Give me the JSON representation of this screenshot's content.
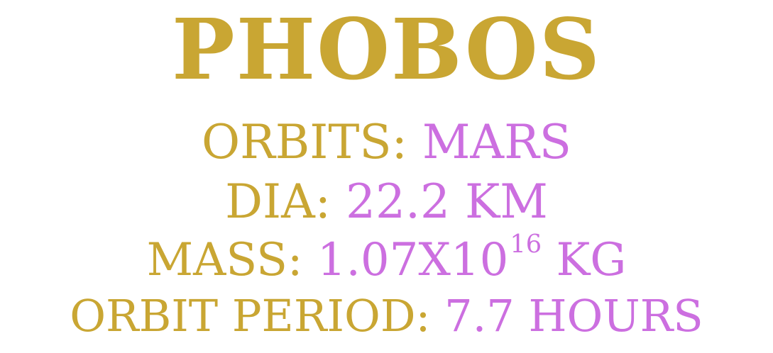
{
  "colors": {
    "label": "#c9a633",
    "value": "#cc6fe0"
  },
  "title": "PHOBOS",
  "orbits": {
    "label": "ORBITS:",
    "value": "MARS"
  },
  "dia": {
    "label": "DIA:",
    "value": "22.2 KM"
  },
  "mass": {
    "label": "MASS:",
    "value_mantissa": "1.07X10",
    "value_exponent": "16",
    "value_unit": "KG"
  },
  "orbit_period": {
    "label": "ORBIT PERIOD:",
    "value": "7.7 HOURS"
  }
}
